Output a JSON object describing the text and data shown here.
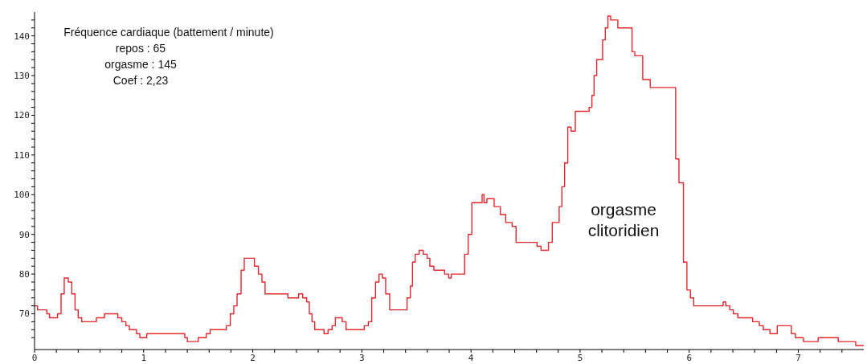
{
  "chart_data": {
    "type": "step",
    "title": "Fréquence cardiaque  (battement / minute)",
    "annotations": [
      "repos : 65",
      "orgasme : 145",
      "Coef : 2,23",
      "orgasme clitoridien"
    ],
    "series": [
      {
        "color": "#e3262b",
        "x": [
          0,
          0.027,
          0.113,
          0.137,
          0.211,
          0.243,
          0.272,
          0.309,
          0.341,
          0.371,
          0.4,
          0.432,
          0.567,
          0.641,
          0.763,
          0.8,
          0.837,
          0.869,
          0.935,
          0.965,
          1.028,
          1.377,
          1.401,
          1.5,
          1.573,
          1.61,
          1.758,
          1.794,
          1.826,
          1.856,
          1.893,
          1.922,
          2.015,
          2.052,
          2.084,
          2.113,
          2.322,
          2.42,
          2.457,
          2.494,
          2.518,
          2.543,
          2.568,
          2.653,
          2.69,
          2.727,
          2.757,
          2.82,
          2.855,
          3.022,
          3.059,
          3.09,
          3.125,
          3.157,
          3.188,
          3.218,
          3.255,
          3.414,
          3.444,
          3.464,
          3.488,
          3.525,
          3.562,
          3.598,
          3.623,
          3.66,
          3.758,
          3.795,
          3.819,
          3.942,
          3.974,
          4.008,
          4.102,
          4.119,
          4.146,
          4.212,
          4.269,
          4.318,
          4.377,
          4.413,
          4.605,
          4.642,
          4.71,
          4.745,
          4.808,
          4.833,
          4.858,
          4.887,
          4.917,
          4.956,
          5.083,
          5.108,
          5.128,
          5.152,
          5.206,
          5.231,
          5.255,
          5.28,
          5.346,
          5.476,
          5.501,
          5.574,
          5.643,
          5.876,
          5.906,
          5.947,
          5.979,
          6.011,
          6.041,
          6.311,
          6.335,
          6.372,
          6.404,
          6.446,
          6.581,
          6.642,
          6.679,
          6.74,
          6.807,
          6.936,
          6.973,
          7.047,
          7.182,
          7.366,
          7.526,
          7.6
        ],
        "values": [
          72,
          71,
          70,
          69,
          70,
          75,
          79,
          78,
          75,
          71,
          69,
          68,
          69,
          70,
          69,
          68,
          67,
          66,
          65,
          64,
          65,
          64,
          63,
          64,
          65,
          66,
          67,
          70,
          72,
          75,
          81,
          84,
          82,
          80,
          78,
          75,
          74,
          75,
          74,
          73,
          70,
          68,
          66,
          65,
          66,
          67,
          69,
          68,
          66,
          67,
          68,
          74,
          78,
          80,
          79,
          75,
          71,
          74,
          77,
          83,
          85,
          86,
          85,
          84,
          82,
          81,
          80,
          79,
          80,
          85,
          90,
          98,
          100,
          98,
          99,
          97,
          95,
          93,
          92,
          88,
          87,
          86,
          88,
          93,
          97,
          102,
          108,
          117,
          116,
          121,
          122,
          125,
          130,
          134,
          139,
          142,
          145,
          144,
          142,
          136,
          135,
          129,
          127,
          109,
          103,
          83,
          76,
          74,
          72,
          73,
          72,
          71,
          70,
          69,
          68,
          67,
          66,
          65,
          67,
          65,
          64,
          63,
          64,
          63,
          62,
          62
        ]
      }
    ],
    "xlim": [
      0,
      7.6
    ],
    "xticks": [
      0,
      {
        "value": 0.2,
        "label": null
      },
      {
        "value": 0.4,
        "label": null
      },
      {
        "value": 0.6,
        "label": null
      },
      {
        "value": 0.8,
        "label": null
      },
      1,
      {
        "value": 1.2,
        "label": null
      },
      {
        "value": 1.4,
        "label": null
      },
      {
        "value": 1.6,
        "label": null
      },
      {
        "value": 1.8,
        "label": null
      },
      2,
      {
        "value": 2.2,
        "label": null
      },
      {
        "value": 2.4,
        "label": null
      },
      {
        "value": 2.6,
        "label": null
      },
      {
        "value": 2.8,
        "label": null
      },
      3,
      {
        "value": 3.2,
        "label": null
      },
      {
        "value": 3.4,
        "label": null
      },
      {
        "value": 3.6,
        "label": null
      },
      {
        "value": 3.8,
        "label": null
      },
      4,
      {
        "value": 4.2,
        "label": null
      },
      {
        "value": 4.4,
        "label": null
      },
      {
        "value": 4.6,
        "label": null
      },
      {
        "value": 4.8,
        "label": null
      },
      5,
      {
        "value": 5.2,
        "label": null
      },
      {
        "value": 5.4,
        "label": null
      },
      {
        "value": 5.6,
        "label": null
      },
      {
        "value": 5.8,
        "label": null
      },
      6,
      {
        "value": 6.2,
        "label": null
      },
      {
        "value": 6.4,
        "label": null
      },
      {
        "value": 6.6,
        "label": null
      },
      {
        "value": 6.8,
        "label": null
      },
      7,
      {
        "value": 7.2,
        "label": null
      },
      {
        "value": 7.4,
        "label": null
      }
    ],
    "ylim": [
      61,
      146
    ],
    "yticks": [
      {
        "value": 64,
        "label": null
      },
      {
        "value": 66,
        "label": null
      },
      {
        "value": 68,
        "label": null
      },
      70,
      {
        "value": 72,
        "label": null
      },
      {
        "value": 74,
        "label": null
      },
      {
        "value": 76,
        "label": null
      },
      {
        "value": 78,
        "label": null
      },
      80,
      {
        "value": 82,
        "label": null
      },
      {
        "value": 84,
        "label": null
      },
      {
        "value": 86,
        "label": null
      },
      {
        "value": 88,
        "label": null
      },
      90,
      {
        "value": 92,
        "label": null
      },
      {
        "value": 94,
        "label": null
      },
      {
        "value": 96,
        "label": null
      },
      {
        "value": 98,
        "label": null
      },
      100,
      {
        "value": 102,
        "label": null
      },
      {
        "value": 104,
        "label": null
      },
      {
        "value": 106,
        "label": null
      },
      {
        "value": 108,
        "label": null
      },
      110,
      {
        "value": 112,
        "label": null
      },
      {
        "value": 114,
        "label": null
      },
      {
        "value": 116,
        "label": null
      },
      {
        "value": 118,
        "label": null
      },
      120,
      {
        "value": 122,
        "label": null
      },
      {
        "value": 124,
        "label": null
      },
      {
        "value": 126,
        "label": null
      },
      {
        "value": 128,
        "label": null
      },
      130,
      {
        "value": 132,
        "label": null
      },
      {
        "value": 134,
        "label": null
      },
      {
        "value": 136,
        "label": null
      },
      {
        "value": 138,
        "label": null
      },
      140,
      {
        "value": 142,
        "label": null
      },
      {
        "value": 144,
        "label": null
      }
    ],
    "grid": false,
    "legend": false,
    "marker": "none",
    "line_style": "solid"
  }
}
